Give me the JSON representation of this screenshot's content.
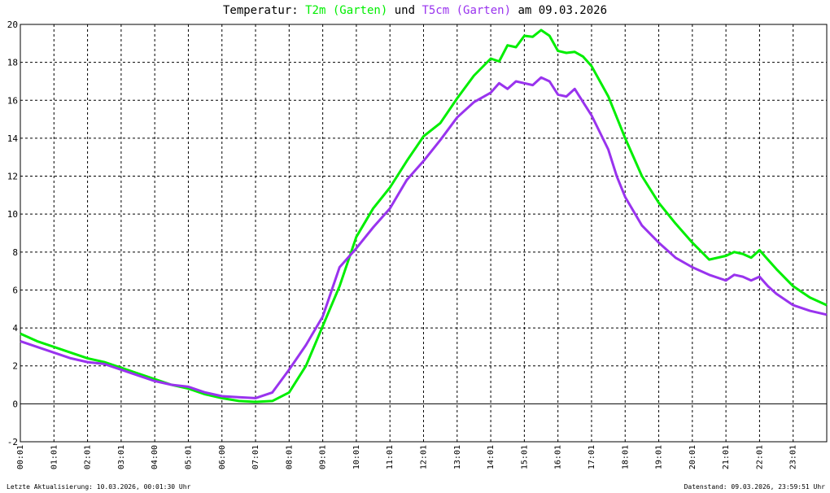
{
  "title": {
    "prefix": "Temperatur: ",
    "series1": "T2m (Garten)",
    "middle": " und ",
    "series2": "T5cm (Garten)",
    "suffix": " am 09.03.2026"
  },
  "footer": {
    "left": "Letzte Aktualisierung: 10.03.2026, 00:01:30 Uhr",
    "right": "Datenstand: 09.03.2026, 23:59:51 Uhr"
  },
  "colors": {
    "t2m": "#00ee00",
    "t5cm": "#9933ee"
  },
  "chart_data": {
    "type": "line",
    "title": "Temperatur: T2m (Garten) und T5cm (Garten) am 09.03.2026",
    "xlabel": "",
    "ylabel": "",
    "xlim": [
      0,
      24
    ],
    "ylim": [
      -2,
      20
    ],
    "grid": true,
    "x_tick_labels": [
      "00:01",
      "01:01",
      "02:01",
      "03:01",
      "04:00",
      "05:01",
      "06:00",
      "07:01",
      "08:01",
      "09:01",
      "10:01",
      "11:01",
      "12:01",
      "13:01",
      "14:01",
      "15:01",
      "16:01",
      "17:01",
      "18:01",
      "19:01",
      "20:01",
      "21:01",
      "22:01",
      "23:01"
    ],
    "y_tick_labels": [
      "-2",
      "0",
      "2",
      "4",
      "6",
      "8",
      "10",
      "12",
      "14",
      "16",
      "18",
      "20"
    ],
    "series": [
      {
        "name": "T2m (Garten)",
        "x": [
          0,
          0.5,
          1,
          1.5,
          2,
          2.5,
          3,
          3.5,
          4,
          4.5,
          5,
          5.5,
          6,
          6.5,
          7,
          7.5,
          8,
          8.5,
          9,
          9.5,
          10,
          10.5,
          11,
          11.5,
          12,
          12.5,
          13,
          13.5,
          14,
          14.25,
          14.5,
          14.75,
          15,
          15.25,
          15.5,
          15.75,
          16,
          16.25,
          16.5,
          16.75,
          17,
          17.5,
          18,
          18.5,
          19,
          19.5,
          20,
          20.5,
          21,
          21.25,
          21.5,
          21.75,
          22,
          22.25,
          22.5,
          23,
          23.5,
          24
        ],
        "y": [
          3.7,
          3.3,
          3.0,
          2.7,
          2.4,
          2.2,
          1.9,
          1.6,
          1.3,
          1.0,
          0.8,
          0.5,
          0.3,
          0.15,
          0.1,
          0.15,
          0.6,
          2.0,
          4.1,
          6.2,
          8.8,
          10.3,
          11.4,
          12.8,
          14.1,
          14.8,
          16.1,
          17.3,
          18.2,
          18.05,
          18.9,
          18.8,
          19.4,
          19.35,
          19.7,
          19.4,
          18.6,
          18.5,
          18.55,
          18.3,
          17.8,
          16.2,
          14.0,
          12.0,
          10.6,
          9.5,
          8.5,
          7.6,
          7.8,
          8.0,
          7.9,
          7.7,
          8.1,
          7.6,
          7.1,
          6.2,
          5.6,
          5.2
        ]
      },
      {
        "name": "T5cm (Garten)",
        "x": [
          0,
          0.5,
          1,
          1.5,
          2,
          2.5,
          3,
          3.5,
          4,
          4.5,
          5,
          5.5,
          6,
          6.5,
          7,
          7.5,
          8,
          8.5,
          9,
          9.5,
          10,
          10.5,
          11,
          11.5,
          12,
          12.5,
          13,
          13.5,
          14,
          14.25,
          14.5,
          14.75,
          15,
          15.25,
          15.5,
          15.75,
          16,
          16.25,
          16.5,
          16.75,
          17,
          17.25,
          17.5,
          17.75,
          18,
          18.5,
          19,
          19.5,
          20,
          20.5,
          21,
          21.25,
          21.5,
          21.75,
          22,
          22.25,
          22.5,
          23,
          23.5,
          24
        ],
        "y": [
          3.3,
          3.0,
          2.7,
          2.4,
          2.2,
          2.1,
          1.8,
          1.5,
          1.2,
          1.0,
          0.9,
          0.6,
          0.4,
          0.35,
          0.3,
          0.6,
          1.8,
          3.1,
          4.6,
          7.2,
          8.2,
          9.3,
          10.3,
          11.8,
          12.8,
          13.9,
          15.1,
          15.9,
          16.4,
          16.9,
          16.6,
          17.0,
          16.9,
          16.8,
          17.2,
          17.0,
          16.3,
          16.2,
          16.6,
          15.9,
          15.2,
          14.3,
          13.4,
          12.0,
          10.9,
          9.4,
          8.5,
          7.7,
          7.2,
          6.8,
          6.5,
          6.8,
          6.7,
          6.5,
          6.7,
          6.2,
          5.8,
          5.2,
          4.9,
          4.7
        ]
      }
    ]
  }
}
